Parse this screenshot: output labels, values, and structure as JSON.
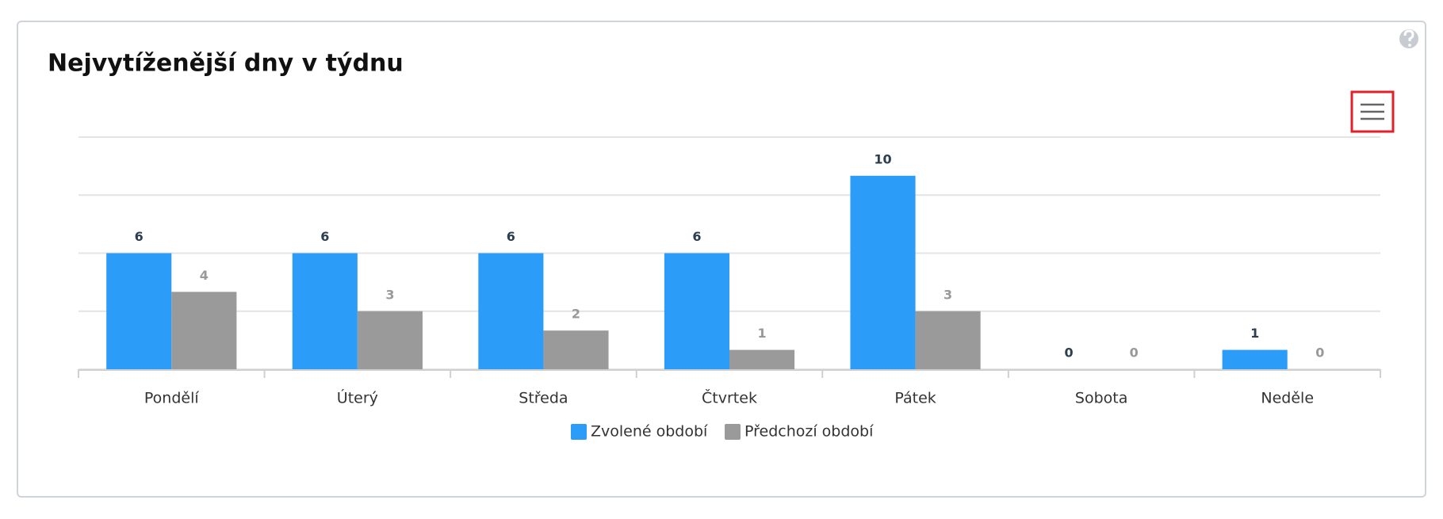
{
  "chart_data": {
    "type": "bar",
    "title": "Nejvytíženější dny v týdnu",
    "categories": [
      "Pondělí",
      "Úterý",
      "Středa",
      "Čtvrtek",
      "Pátek",
      "Sobota",
      "Neděle"
    ],
    "series": [
      {
        "name": "Zvolené období",
        "color": "#2b9cf8",
        "values": [
          6,
          6,
          6,
          6,
          10,
          0,
          1
        ]
      },
      {
        "name": "Předchozí období",
        "color": "#9a9a9a",
        "values": [
          4,
          3,
          2,
          1,
          3,
          0,
          0
        ]
      }
    ],
    "ylim": [
      0,
      12
    ],
    "yticks": [
      0,
      3,
      6,
      9,
      12
    ],
    "grid": true,
    "legend": "bottom"
  }
}
